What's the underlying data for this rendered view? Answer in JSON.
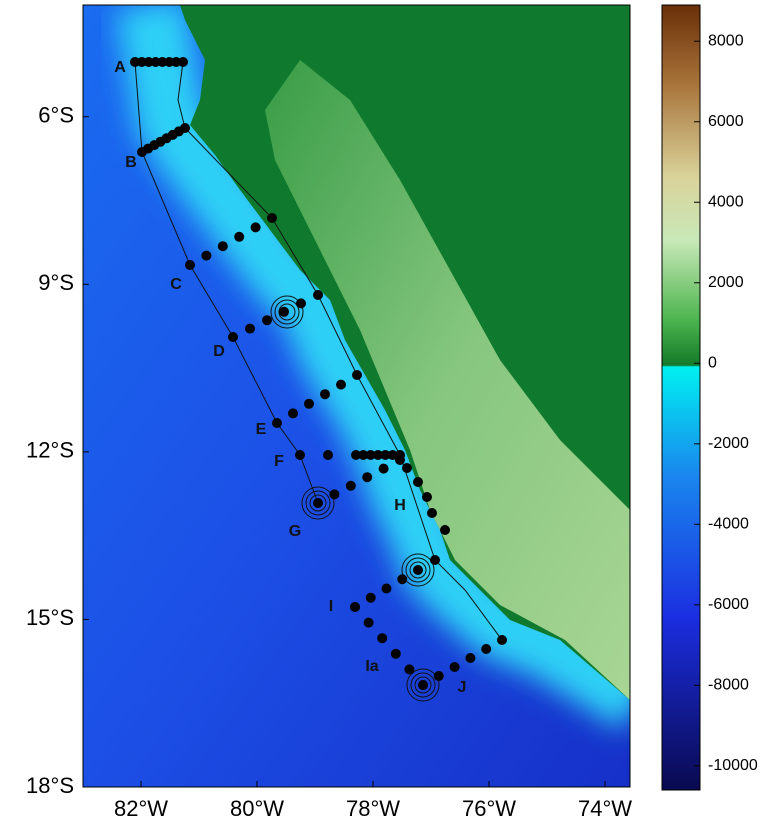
{
  "map": {
    "xlim": [
      -83,
      -73.57
    ],
    "ylim": [
      -18,
      -4
    ],
    "xticks": [
      {
        "value": -82,
        "label": "82°W"
      },
      {
        "value": -80,
        "label": "80°W"
      },
      {
        "value": -78,
        "label": "78°W"
      },
      {
        "value": -76,
        "label": "76°W"
      },
      {
        "value": -74,
        "label": "74°W"
      }
    ],
    "yticks": [
      {
        "value": -6,
        "label": "6°S"
      },
      {
        "value": -9,
        "label": "9°S"
      },
      {
        "value": -12,
        "label": "12°S"
      },
      {
        "value": -15,
        "label": "15°S"
      },
      {
        "value": -18,
        "label": "18°S"
      }
    ],
    "transect_labels": [
      "A",
      "B",
      "C",
      "D",
      "E",
      "F",
      "G",
      "H",
      "I",
      "Ia",
      "J"
    ],
    "colorbar": {
      "lim": [
        -10600,
        8900
      ],
      "ticks": [
        8000,
        6000,
        4000,
        2000,
        0,
        -2000,
        -4000,
        -6000,
        -8000,
        -10000
      ]
    }
  }
}
